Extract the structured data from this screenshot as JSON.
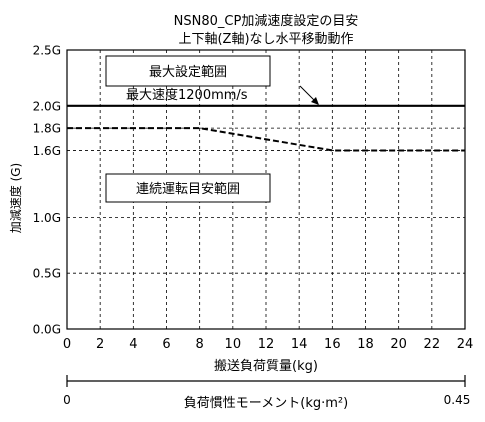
{
  "chart_data": {
    "type": "line",
    "title_line1": "NSN80_CP加減速度設定の目安",
    "title_line2": "上下軸(Z軸)なし水平移動動作",
    "xlabel": "搬送負荷質量(kg)",
    "ylabel": "加減速度 (G)",
    "x_ticks": [
      "0",
      "2",
      "4",
      "6",
      "8",
      "10",
      "12",
      "14",
      "16",
      "18",
      "20",
      "22",
      "24"
    ],
    "xlim": [
      0,
      24
    ],
    "y_ticks": [
      {
        "value": 0.0,
        "label": "0.0G"
      },
      {
        "value": 0.5,
        "label": "0.5G"
      },
      {
        "value": 1.0,
        "label": "1.0G"
      },
      {
        "value": 1.6,
        "label": "1.6G"
      },
      {
        "value": 1.8,
        "label": "1.8G"
      },
      {
        "value": 2.0,
        "label": "2.0G"
      },
      {
        "value": 2.5,
        "label": "2.5G"
      }
    ],
    "ylim": [
      0,
      2.5
    ],
    "grid": true,
    "series": [
      {
        "name": "最大設定範囲",
        "style": "solid",
        "color": "#000000",
        "x": [
          0,
          24
        ],
        "y": [
          2.0,
          2.0
        ]
      },
      {
        "name": "連続運転目安範囲",
        "style": "dashed",
        "color": "#000000",
        "x": [
          0,
          8,
          16,
          24
        ],
        "y": [
          1.8,
          1.8,
          1.6,
          1.6
        ]
      }
    ],
    "annotations": {
      "max_speed": "最大速度1200mm/s",
      "max_box": "最大設定範囲",
      "cont_box": "連続運転目安範囲"
    },
    "secondary_axis": {
      "label": "負荷慣性モーメント(kg·m²)",
      "min_label": "0",
      "max_label": "0.45"
    }
  }
}
